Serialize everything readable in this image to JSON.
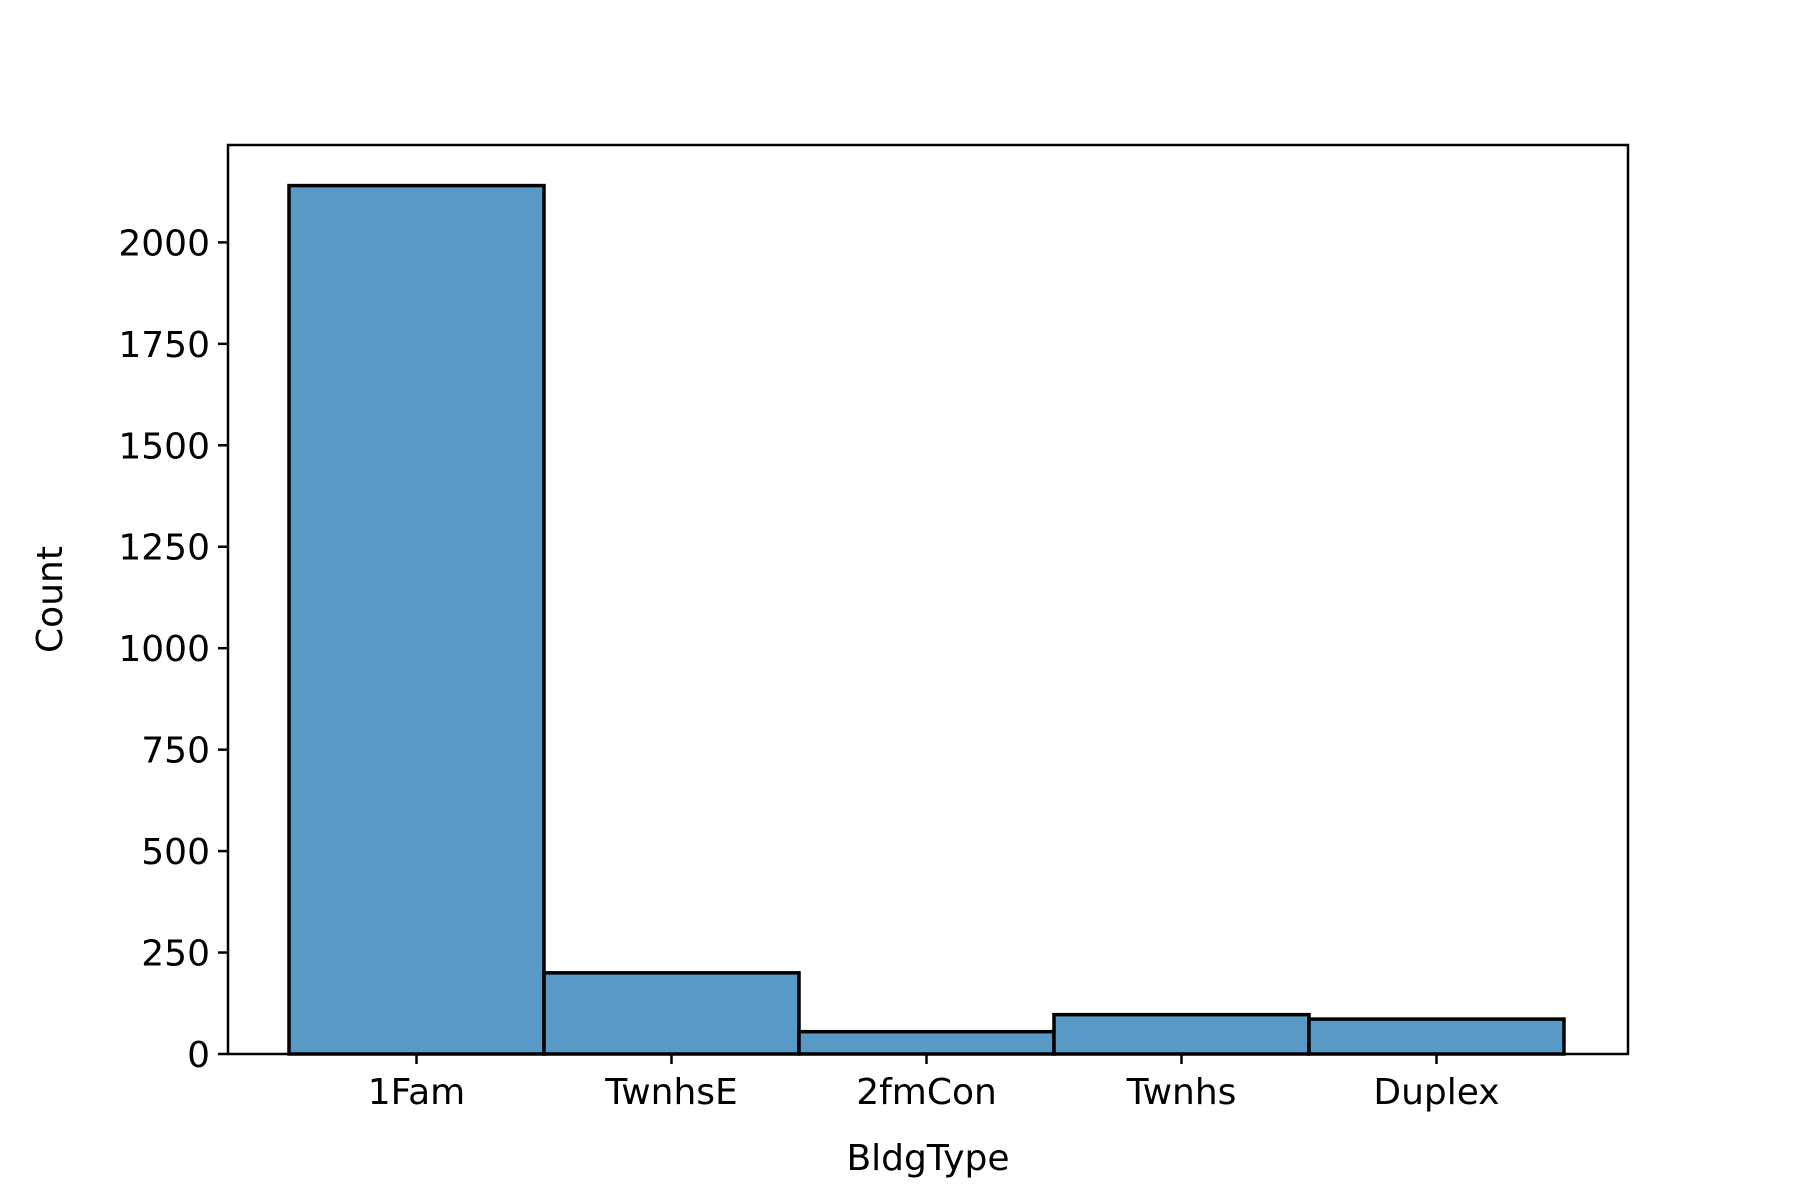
{
  "chart_data": {
    "type": "bar",
    "categories": [
      "1Fam",
      "TwnhsE",
      "2fmCon",
      "Twnhs",
      "Duplex"
    ],
    "values": [
      2140,
      200,
      55,
      97,
      86
    ],
    "xlabel": "BldgType",
    "ylabel": "Count",
    "ylim": [
      0,
      2240
    ],
    "yticks": [
      0,
      250,
      500,
      750,
      1000,
      1250,
      1500,
      1750,
      2000
    ],
    "grid": false,
    "legend": "none",
    "bar_color": "#5899c6",
    "edge_color": "#000000"
  }
}
